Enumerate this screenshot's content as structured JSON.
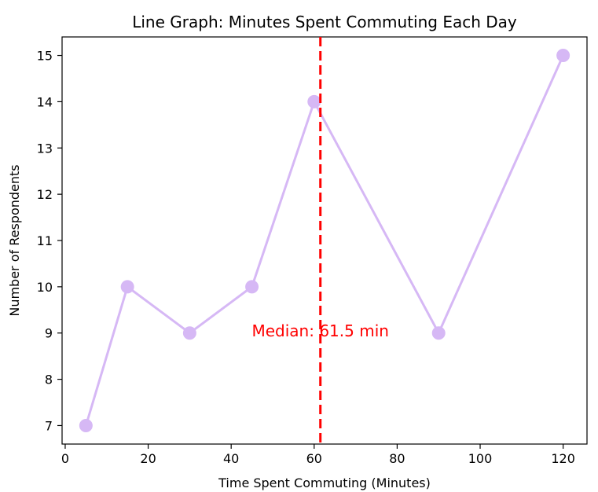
{
  "chart_data": {
    "type": "line",
    "title": "Line Graph: Minutes Spent Commuting Each Day",
    "xlabel": "Time Spent Commuting (Minutes)",
    "ylabel": "Number of Respondents",
    "xlim": [
      -0.75,
      125.75
    ],
    "ylim": [
      6.6,
      15.4
    ],
    "xticks": [
      0,
      20,
      40,
      60,
      80,
      100,
      120
    ],
    "yticks": [
      7,
      8,
      9,
      10,
      11,
      12,
      13,
      14,
      15
    ],
    "grid": false,
    "series": [
      {
        "color": "#d6b8f5",
        "x": [
          5,
          15,
          30,
          45,
          60,
          90,
          120
        ],
        "y": [
          7,
          10,
          9,
          10,
          14,
          9,
          15
        ]
      }
    ],
    "annotations": [
      {
        "type": "vline",
        "x": 61.5,
        "color": "#ff0000",
        "style": "dashed",
        "label": "Median: 61.5 min",
        "label_y": 9.1
      }
    ]
  }
}
